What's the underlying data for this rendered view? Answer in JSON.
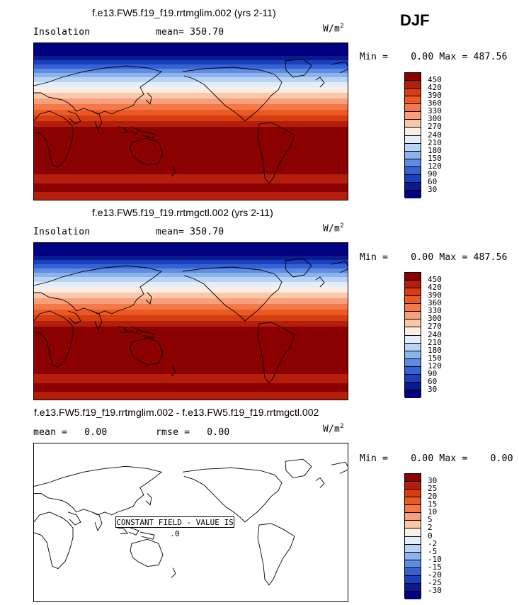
{
  "season": "DJF",
  "panels": [
    {
      "title": "f.e13.FW5.f19_f19.rrtmglim.002 (yrs 2-11)",
      "left_label": "Insolation",
      "stat_label": "mean=",
      "stat_value": "350.70",
      "units": "W/m",
      "units_exp": "2",
      "minmax": "Min =    0.00 Max = 487.56"
    },
    {
      "title": "f.e13.FW5.f19_f19.rrtmgctl.002 (yrs 2-11)",
      "left_label": "Insolation",
      "stat_label": "mean=",
      "stat_value": "350.70",
      "units": "W/m",
      "units_exp": "2",
      "minmax": "Min =    0.00 Max = 487.56"
    },
    {
      "title": "f.e13.FW5.f19_f19.rrtmglim.002 - f.e13.FW5.f19_f19.rrtmgctl.002",
      "left_label": "mean =",
      "left_value": "0.00",
      "stat_label": "rmse =",
      "stat_value": "0.00",
      "units": "W/m",
      "units_exp": "2",
      "minmax": "Min =    0.00 Max =    0.00",
      "annotation": "CONSTANT FIELD - VALUE IS .0"
    }
  ],
  "colorbars": {
    "main_levels": [
      "450",
      "420",
      "390",
      "360",
      "330",
      "300",
      "270",
      "240",
      "210",
      "180",
      "150",
      "120",
      "90",
      "60",
      "30"
    ],
    "diff_levels": [
      "30",
      "25",
      "20",
      "15",
      "10",
      "5",
      "2",
      "0",
      "-2",
      "-5",
      "-10",
      "-15",
      "-20",
      "-25",
      "-30"
    ],
    "colors": [
      "#8b0000",
      "#b51e0a",
      "#d63d10",
      "#ec5a22",
      "#f4794a",
      "#f8a07c",
      "#fbc7ab",
      "#fdeee3",
      "#e3eefb",
      "#b9d3f5",
      "#8cb3ee",
      "#5e8ce3",
      "#3563d6",
      "#1a3fbf",
      "#0a1a8f",
      "#000080"
    ]
  }
}
